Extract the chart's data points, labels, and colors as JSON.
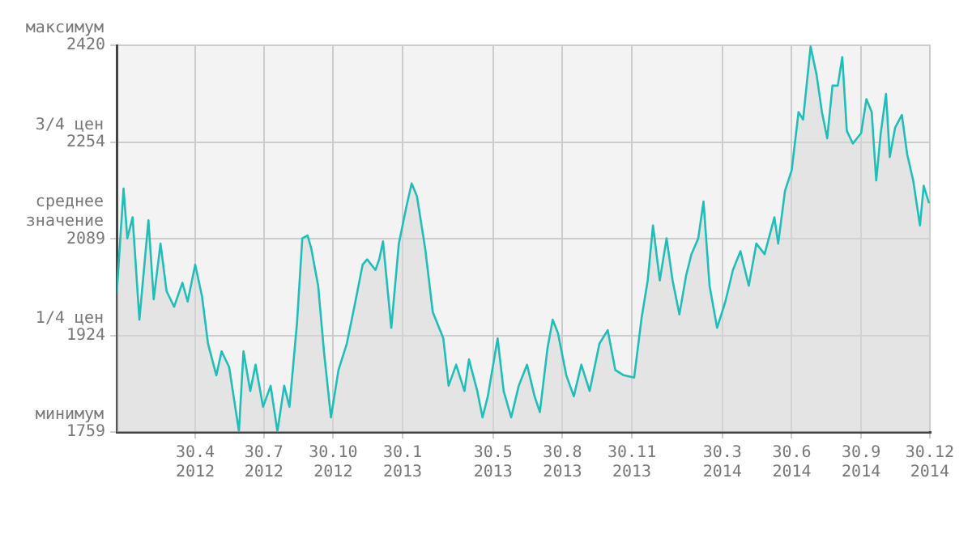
{
  "chart_data": {
    "type": "area",
    "x": [
      "2012-01-17",
      "2012-01-26",
      "2012-01-31",
      "2012-02-07",
      "2012-02-16",
      "2012-02-28",
      "2012-03-06",
      "2012-03-15",
      "2012-03-23",
      "2012-04-02",
      "2012-04-13",
      "2012-04-20",
      "2012-04-30",
      "2012-05-09",
      "2012-05-17",
      "2012-05-28",
      "2012-06-04",
      "2012-06-14",
      "2012-06-27",
      "2012-07-03",
      "2012-07-12",
      "2012-07-19",
      "2012-07-29",
      "2012-08-08",
      "2012-08-17",
      "2012-08-26",
      "2012-09-02",
      "2012-09-12",
      "2012-09-19",
      "2012-09-26",
      "2012-10-01",
      "2012-10-10",
      "2012-10-18",
      "2012-10-27",
      "2012-11-06",
      "2012-11-17",
      "2012-11-27",
      "2012-12-08",
      "2012-12-14",
      "2012-12-25",
      "2012-12-30",
      "2013-01-04",
      "2013-01-15",
      "2013-01-25",
      "2013-02-04",
      "2013-02-11",
      "2013-02-18",
      "2013-03-01",
      "2013-03-11",
      "2013-03-25",
      "2013-04-01",
      "2013-04-11",
      "2013-04-22",
      "2013-04-28",
      "2013-05-09",
      "2013-05-16",
      "2013-05-23",
      "2013-06-05",
      "2013-06-13",
      "2013-06-23",
      "2013-07-03",
      "2013-07-14",
      "2013-07-24",
      "2013-07-31",
      "2013-08-10",
      "2013-08-17",
      "2013-08-24",
      "2013-09-04",
      "2013-09-14",
      "2013-09-24",
      "2013-10-05",
      "2013-10-18",
      "2013-10-29",
      "2013-11-08",
      "2013-11-19",
      "2013-12-03",
      "2013-12-06",
      "2013-12-13",
      "2013-12-21",
      "2013-12-28",
      "2014-01-06",
      "2014-01-15",
      "2014-01-23",
      "2014-02-01",
      "2014-02-10",
      "2014-02-17",
      "2014-02-26",
      "2014-03-05",
      "2014-03-13",
      "2014-03-23",
      "2014-04-03",
      "2014-04-13",
      "2014-04-23",
      "2014-05-04",
      "2014-05-14",
      "2014-05-25",
      "2014-06-07",
      "2014-06-12",
      "2014-06-21",
      "2014-06-30",
      "2014-07-09",
      "2014-07-15",
      "2014-07-25",
      "2014-08-02",
      "2014-08-09",
      "2014-08-16",
      "2014-08-23",
      "2014-08-30",
      "2014-09-05",
      "2014-09-11",
      "2014-09-19",
      "2014-09-30",
      "2014-10-07",
      "2014-10-14",
      "2014-10-20",
      "2014-10-26",
      "2014-11-02",
      "2014-11-07",
      "2014-11-14",
      "2014-11-23",
      "2014-11-30",
      "2014-12-08",
      "2014-12-17",
      "2014-12-22",
      "2014-12-29"
    ],
    "series": [
      {
        "color": "#1fbfb8",
        "values": [
          1996,
          2175,
          2090,
          2126,
          1951,
          2121,
          1986,
          2081,
          2000,
          1973,
          2014,
          1982,
          2045,
          1991,
          1910,
          1856,
          1897,
          1870,
          1760,
          1897,
          1829,
          1874,
          1802,
          1838,
          1760,
          1838,
          1802,
          1946,
          2090,
          2095,
          2072,
          2009,
          1893,
          1784,
          1865,
          1910,
          1973,
          2045,
          2054,
          2036,
          2054,
          2085,
          1937,
          2081,
          2144,
          2184,
          2162,
          2072,
          1964,
          1919,
          1838,
          1874,
          1829,
          1883,
          1829,
          1784,
          1820,
          1919,
          1829,
          1784,
          1838,
          1874,
          1820,
          1793,
          1901,
          1951,
          1928,
          1856,
          1820,
          1874,
          1829,
          1910,
          1933,
          1865,
          1856,
          1852,
          1883,
          1955,
          2018,
          2112,
          2018,
          2090,
          2018,
          1960,
          2027,
          2063,
          2090,
          2153,
          2009,
          1937,
          1982,
          2036,
          2068,
          2009,
          2081,
          2063,
          2126,
          2081,
          2171,
          2207,
          2306,
          2293,
          2418,
          2369,
          2306,
          2261,
          2351,
          2351,
          2400,
          2274,
          2252,
          2270,
          2328,
          2306,
          2189,
          2270,
          2337,
          2229,
          2279,
          2301,
          2234,
          2189,
          2112,
          2180,
          2150
        ]
      }
    ],
    "xlim": [
      "2012-01-17",
      "2014-12-31"
    ],
    "xticks": [
      {
        "value": "2012-04-30",
        "label": "30.4\n2012"
      },
      {
        "value": "2012-07-30",
        "label": "30.7\n2012"
      },
      {
        "value": "2012-10-30",
        "label": "30.10\n2012"
      },
      {
        "value": "2013-01-30",
        "label": "30.1\n2013"
      },
      {
        "value": "2013-05-30",
        "label": "30.5\n2013"
      },
      {
        "value": "2013-08-30",
        "label": "30.8\n2013"
      },
      {
        "value": "2013-11-30",
        "label": "30.11\n2013"
      },
      {
        "value": "2014-03-30",
        "label": "30.3\n2014"
      },
      {
        "value": "2014-06-30",
        "label": "30.6\n2014"
      },
      {
        "value": "2014-09-30",
        "label": "30.9\n2014"
      },
      {
        "value": "2014-12-30",
        "label": "30.12\n2014"
      }
    ],
    "ylim": [
      1759,
      2420
    ],
    "yticks": [
      1759,
      1924,
      2089,
      2254,
      2420
    ],
    "annotations": [
      "минимум",
      "1/4 цен",
      "среднее\nзначение",
      "3/4 цен",
      "максимум"
    ],
    "grid": true,
    "legend": false,
    "marker": "none",
    "line_style": "solid"
  }
}
